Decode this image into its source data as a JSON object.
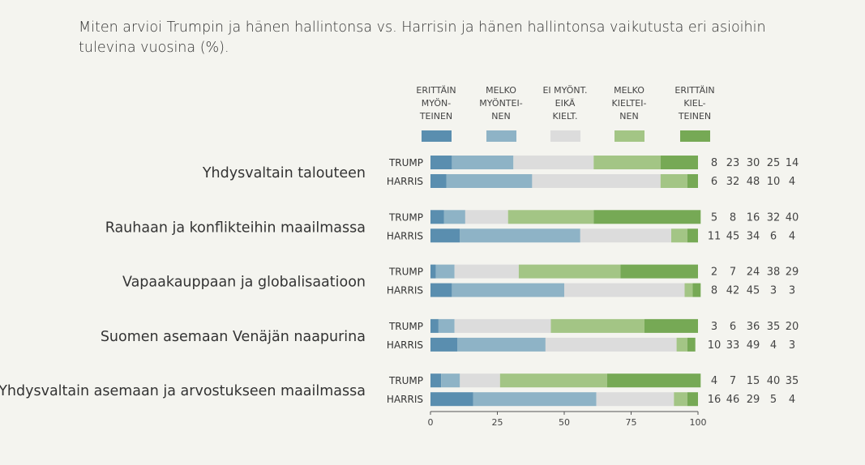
{
  "chart_data": {
    "type": "bar",
    "stacked": true,
    "orientation": "horizontal",
    "title": "Miten arvioi Trumpin ja hänen hallintonsa vs. Harrisin ja hänen hallintonsa vaikutusta eri asioihin tulevina vuosina (%).",
    "xlim": [
      0,
      100
    ],
    "xticks": [
      "0",
      "25",
      "50",
      "75",
      "100"
    ],
    "legend": [
      {
        "label": "ERITTÄIN\nMYÖN-\nTEINEN",
        "color": "#5a8eaf"
      },
      {
        "label": "MELKO\nMYÖNTEI-\nNEN",
        "color": "#8eb3c6"
      },
      {
        "label": "EI MYÖNT.\nEIKÄ\nKIELT.",
        "color": "#dcdcdc"
      },
      {
        "label": "MELKO\nKIELTEI-\nNEN",
        "color": "#a3c585"
      },
      {
        "label": "ERITTÄIN\nKIEL-\nTEINEN",
        "color": "#76a955"
      }
    ],
    "categories": [
      {
        "label": "Yhdysvaltain talouteen",
        "series": [
          {
            "name": "TRUMP",
            "values": [
              8,
              23,
              30,
              25,
              14
            ]
          },
          {
            "name": "HARRIS",
            "values": [
              6,
              32,
              48,
              10,
              4
            ]
          }
        ]
      },
      {
        "label": "Rauhaan ja konflikteihin maailmassa",
        "series": [
          {
            "name": "TRUMP",
            "values": [
              5,
              8,
              16,
              32,
              40
            ]
          },
          {
            "name": "HARRIS",
            "values": [
              11,
              45,
              34,
              6,
              4
            ]
          }
        ]
      },
      {
        "label": "Vapaakauppaan ja globalisaatioon",
        "series": [
          {
            "name": "TRUMP",
            "values": [
              2,
              7,
              24,
              38,
              29
            ]
          },
          {
            "name": "HARRIS",
            "values": [
              8,
              42,
              45,
              3,
              3
            ]
          }
        ]
      },
      {
        "label": "Suomen asemaan Venäjän naapurina",
        "series": [
          {
            "name": "TRUMP",
            "values": [
              3,
              6,
              36,
              35,
              20
            ]
          },
          {
            "name": "HARRIS",
            "values": [
              10,
              33,
              49,
              4,
              3
            ]
          }
        ]
      },
      {
        "label": "Yhdysvaltain asemaan ja arvostukseen maailmassa",
        "series": [
          {
            "name": "TRUMP",
            "values": [
              4,
              7,
              15,
              40,
              35
            ]
          },
          {
            "name": "HARRIS",
            "values": [
              16,
              46,
              29,
              5,
              4
            ]
          }
        ]
      }
    ]
  }
}
